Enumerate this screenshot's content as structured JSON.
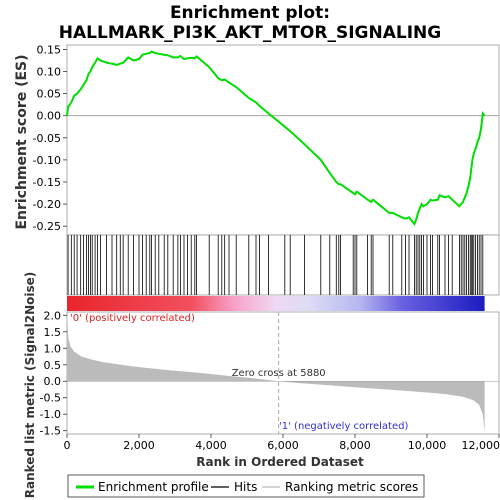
{
  "title_line1": "Enrichment plot:",
  "title_line2": "HALLMARK_PI3K_AKT_MTOR_SIGNALING",
  "es_axis_label": "Enrichment score (ES)",
  "metric_axis_label": "Ranked list metric (Signal2Noise)",
  "x_axis_label": "Rank in Ordered Dataset",
  "positive_label": "'0' (positively correlated)",
  "negative_label": "'1' (negatively correlated)",
  "zero_cross_label": "Zero cross at 5880",
  "legend": {
    "enrichment": "Enrichment profile",
    "hits": "Hits",
    "metric": "Ranking metric scores"
  },
  "colors": {
    "enrichment_line": "#00dd00",
    "hit_line": "#000000",
    "metric_fill": "#bbbbbb",
    "positive_text": "#e0211f",
    "negative_text": "#2f2fd8"
  },
  "chart_data": {
    "type": "line",
    "n_ranks": 11600,
    "zero_cross": 5880,
    "es_ylim": [
      -0.27,
      0.16
    ],
    "es_yticks": [
      "0.15",
      "0.10",
      "0.05",
      "0.00",
      "-0.05",
      "-0.10",
      "-0.15",
      "-0.20",
      "-0.25"
    ],
    "es_ytick_values": [
      0.15,
      0.1,
      0.05,
      0.0,
      -0.05,
      -0.1,
      -0.15,
      -0.2,
      -0.25
    ],
    "metric_ylim": [
      -1.6,
      2.1
    ],
    "metric_yticks": [
      "2.0",
      "1.5",
      "1.0",
      "0.5",
      "0.0",
      "-0.5",
      "-1.0",
      "-1.5"
    ],
    "metric_ytick_values": [
      2.0,
      1.5,
      1.0,
      0.5,
      0.0,
      -0.5,
      -1.0,
      -1.5
    ],
    "xlim": [
      0,
      12000
    ],
    "xticks": [
      "0",
      "2,000",
      "4,000",
      "6,000",
      "8,000",
      "10,000",
      "12,000"
    ],
    "xtick_values": [
      0,
      2000,
      4000,
      6000,
      8000,
      10000,
      12000
    ],
    "hits": [
      30,
      120,
      200,
      280,
      380,
      460,
      540,
      600,
      650,
      700,
      780,
      850,
      930,
      1100,
      1250,
      1380,
      1480,
      1560,
      1700,
      1850,
      2000,
      2100,
      2200,
      2300,
      2350,
      2450,
      2550,
      2700,
      2800,
      2950,
      3080,
      3150,
      3250,
      3350,
      3450,
      3550,
      3600,
      3950,
      4200,
      4300,
      4380,
      4500,
      4700,
      5050,
      5250,
      5350,
      5600,
      6050,
      6200,
      6600,
      7050,
      7300,
      7480,
      7550,
      7600,
      7950,
      8000,
      8050,
      8350,
      8450,
      8500,
      8950,
      9050,
      9300,
      9400,
      9500,
      9650,
      9700,
      9750,
      9800,
      9850,
      9900,
      10000,
      10100,
      10150,
      10300,
      10350,
      10500,
      10600,
      10700,
      10900,
      10950,
      11000,
      11050,
      11100,
      11150,
      11200,
      11230,
      11260,
      11300,
      11350,
      11400,
      11450,
      11500,
      11550
    ],
    "es_profile": [
      [
        0,
        0.0
      ],
      [
        30,
        0.02
      ],
      [
        120,
        0.03
      ],
      [
        200,
        0.045
      ],
      [
        280,
        0.05
      ],
      [
        380,
        0.06
      ],
      [
        460,
        0.07
      ],
      [
        540,
        0.08
      ],
      [
        600,
        0.095
      ],
      [
        650,
        0.1
      ],
      [
        700,
        0.11
      ],
      [
        780,
        0.12
      ],
      [
        850,
        0.13
      ],
      [
        930,
        0.125
      ],
      [
        1100,
        0.12
      ],
      [
        1250,
        0.118
      ],
      [
        1380,
        0.115
      ],
      [
        1480,
        0.118
      ],
      [
        1560,
        0.12
      ],
      [
        1700,
        0.132
      ],
      [
        1850,
        0.125
      ],
      [
        2000,
        0.128
      ],
      [
        2100,
        0.138
      ],
      [
        2200,
        0.14
      ],
      [
        2300,
        0.142
      ],
      [
        2350,
        0.145
      ],
      [
        2450,
        0.142
      ],
      [
        2550,
        0.14
      ],
      [
        2700,
        0.138
      ],
      [
        2800,
        0.137
      ],
      [
        2950,
        0.132
      ],
      [
        3080,
        0.132
      ],
      [
        3150,
        0.135
      ],
      [
        3250,
        0.128
      ],
      [
        3350,
        0.13
      ],
      [
        3450,
        0.131
      ],
      [
        3550,
        0.13
      ],
      [
        3600,
        0.134
      ],
      [
        3950,
        0.11
      ],
      [
        4200,
        0.085
      ],
      [
        4300,
        0.08
      ],
      [
        4380,
        0.082
      ],
      [
        4500,
        0.075
      ],
      [
        4700,
        0.065
      ],
      [
        5050,
        0.04
      ],
      [
        5250,
        0.03
      ],
      [
        5350,
        0.022
      ],
      [
        5600,
        0.005
      ],
      [
        6050,
        -0.025
      ],
      [
        6200,
        -0.035
      ],
      [
        6600,
        -0.065
      ],
      [
        7050,
        -0.1
      ],
      [
        7300,
        -0.13
      ],
      [
        7480,
        -0.15
      ],
      [
        7550,
        -0.155
      ],
      [
        7600,
        -0.155
      ],
      [
        7950,
        -0.175
      ],
      [
        8000,
        -0.178
      ],
      [
        8050,
        -0.172
      ],
      [
        8350,
        -0.19
      ],
      [
        8450,
        -0.195
      ],
      [
        8500,
        -0.19
      ],
      [
        8950,
        -0.22
      ],
      [
        9050,
        -0.22
      ],
      [
        9300,
        -0.23
      ],
      [
        9400,
        -0.233
      ],
      [
        9500,
        -0.23
      ],
      [
        9650,
        -0.245
      ],
      [
        9700,
        -0.235
      ],
      [
        9750,
        -0.22
      ],
      [
        9800,
        -0.21
      ],
      [
        9850,
        -0.2
      ],
      [
        9900,
        -0.205
      ],
      [
        10000,
        -0.2
      ],
      [
        10100,
        -0.19
      ],
      [
        10150,
        -0.192
      ],
      [
        10300,
        -0.19
      ],
      [
        10350,
        -0.18
      ],
      [
        10500,
        -0.185
      ],
      [
        10600,
        -0.182
      ],
      [
        10700,
        -0.19
      ],
      [
        10900,
        -0.205
      ],
      [
        10950,
        -0.2
      ],
      [
        11000,
        -0.195
      ],
      [
        11050,
        -0.185
      ],
      [
        11100,
        -0.175
      ],
      [
        11150,
        -0.16
      ],
      [
        11200,
        -0.14
      ],
      [
        11230,
        -0.12
      ],
      [
        11260,
        -0.1
      ],
      [
        11300,
        -0.085
      ],
      [
        11350,
        -0.075
      ],
      [
        11400,
        -0.06
      ],
      [
        11450,
        -0.05
      ],
      [
        11500,
        -0.03
      ],
      [
        11550,
        0.005
      ],
      [
        11600,
        0.0
      ]
    ],
    "metric_curve": [
      [
        0,
        2.05
      ],
      [
        40,
        1.3
      ],
      [
        100,
        1.05
      ],
      [
        200,
        0.9
      ],
      [
        400,
        0.75
      ],
      [
        700,
        0.65
      ],
      [
        1000,
        0.58
      ],
      [
        1500,
        0.5
      ],
      [
        2000,
        0.43
      ],
      [
        2500,
        0.37
      ],
      [
        3000,
        0.32
      ],
      [
        3500,
        0.27
      ],
      [
        4000,
        0.22
      ],
      [
        4500,
        0.16
      ],
      [
        5000,
        0.11
      ],
      [
        5500,
        0.05
      ],
      [
        5880,
        0.0
      ],
      [
        6500,
        -0.06
      ],
      [
        7000,
        -0.1
      ],
      [
        7500,
        -0.14
      ],
      [
        8000,
        -0.18
      ],
      [
        8500,
        -0.22
      ],
      [
        9000,
        -0.26
      ],
      [
        9500,
        -0.3
      ],
      [
        10000,
        -0.34
      ],
      [
        10500,
        -0.39
      ],
      [
        11000,
        -0.47
      ],
      [
        11300,
        -0.58
      ],
      [
        11450,
        -0.72
      ],
      [
        11550,
        -1.0
      ],
      [
        11590,
        -1.45
      ],
      [
        11600,
        -1.45
      ]
    ]
  }
}
